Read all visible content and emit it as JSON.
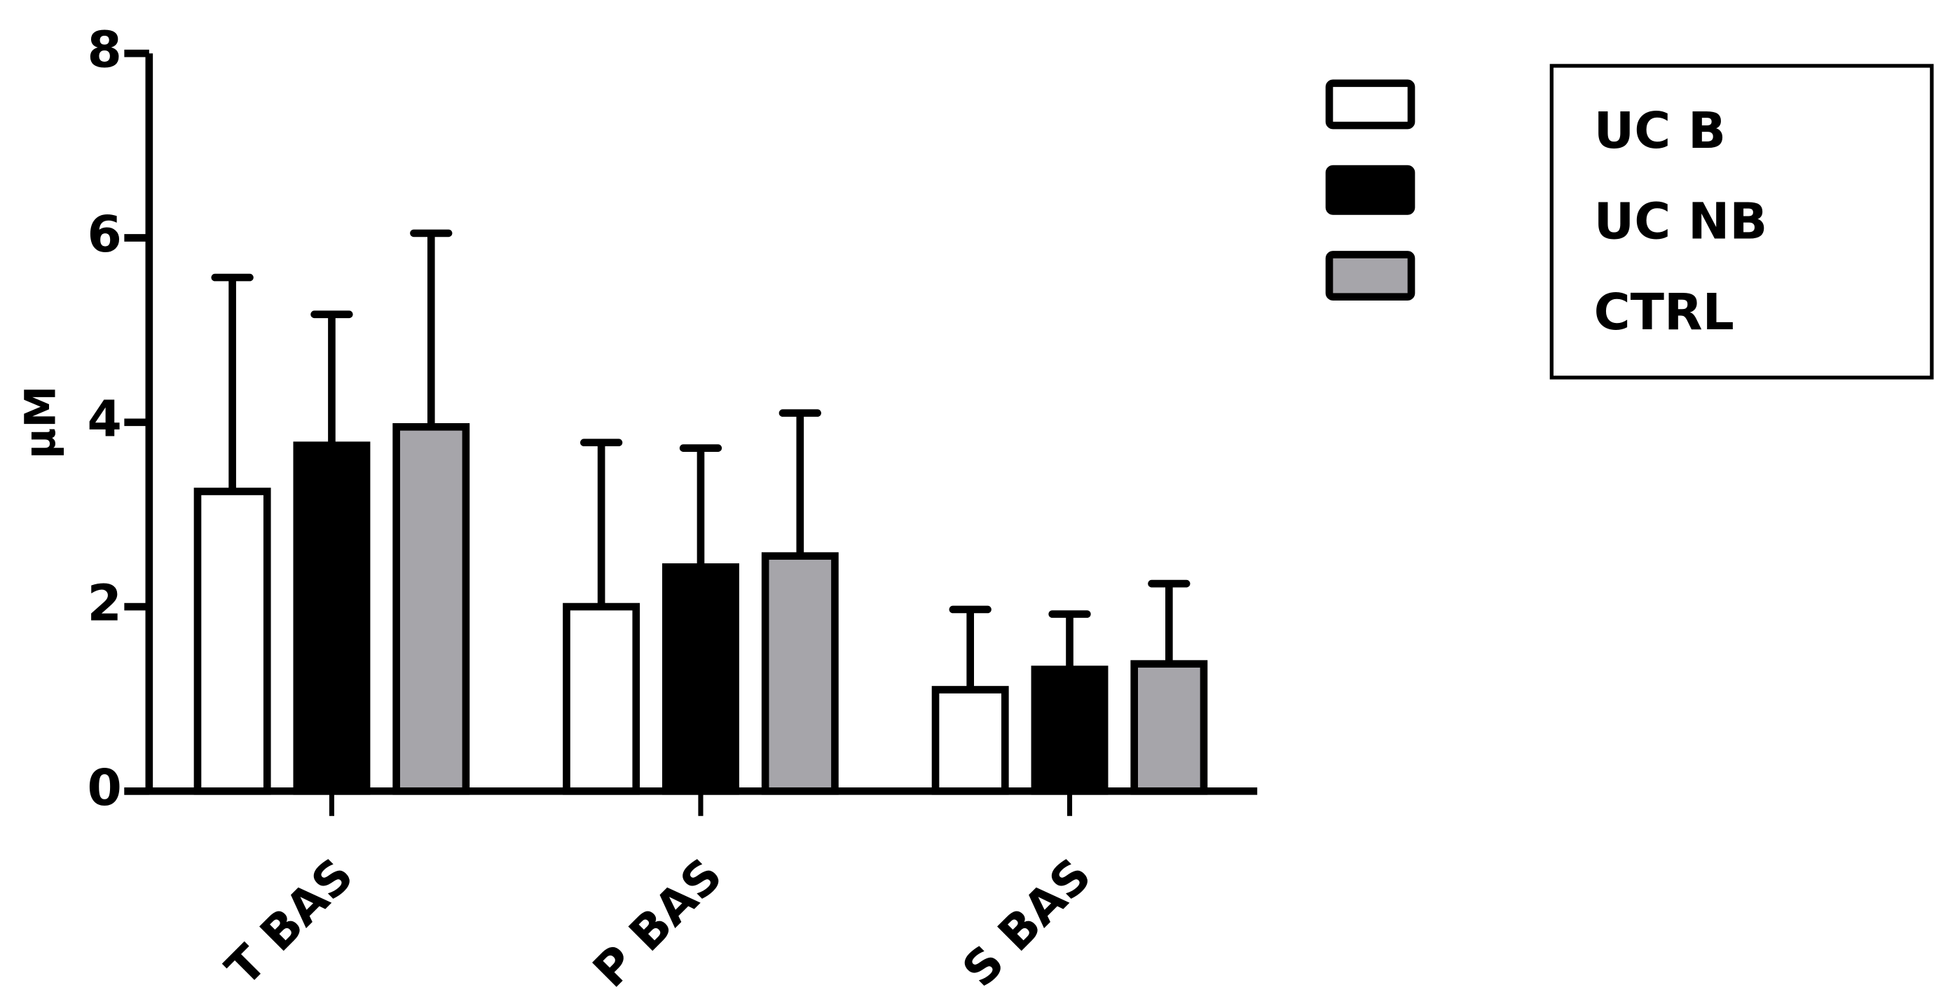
{
  "chart_data": {
    "type": "bar",
    "y_label": "µM",
    "categories": [
      "T BAS",
      "P BAS",
      "S BAS"
    ],
    "series": [
      {
        "name": "UC B",
        "color": "#ffffff",
        "values": [
          3.25,
          2.0,
          1.1
        ],
        "errors": [
          2.32,
          1.78,
          0.87
        ]
      },
      {
        "name": "UC NB",
        "color": "#000000",
        "values": [
          3.75,
          2.43,
          1.32
        ],
        "errors": [
          1.42,
          1.29,
          0.6
        ]
      },
      {
        "name": "CTRL",
        "color": "#a6a5aa",
        "values": [
          3.95,
          2.55,
          1.38
        ],
        "errors": [
          2.1,
          1.55,
          0.87
        ]
      }
    ],
    "ylim": [
      0,
      8
    ],
    "yticks": [
      0,
      2,
      4,
      6,
      8
    ],
    "legend": "right",
    "grid": false
  }
}
